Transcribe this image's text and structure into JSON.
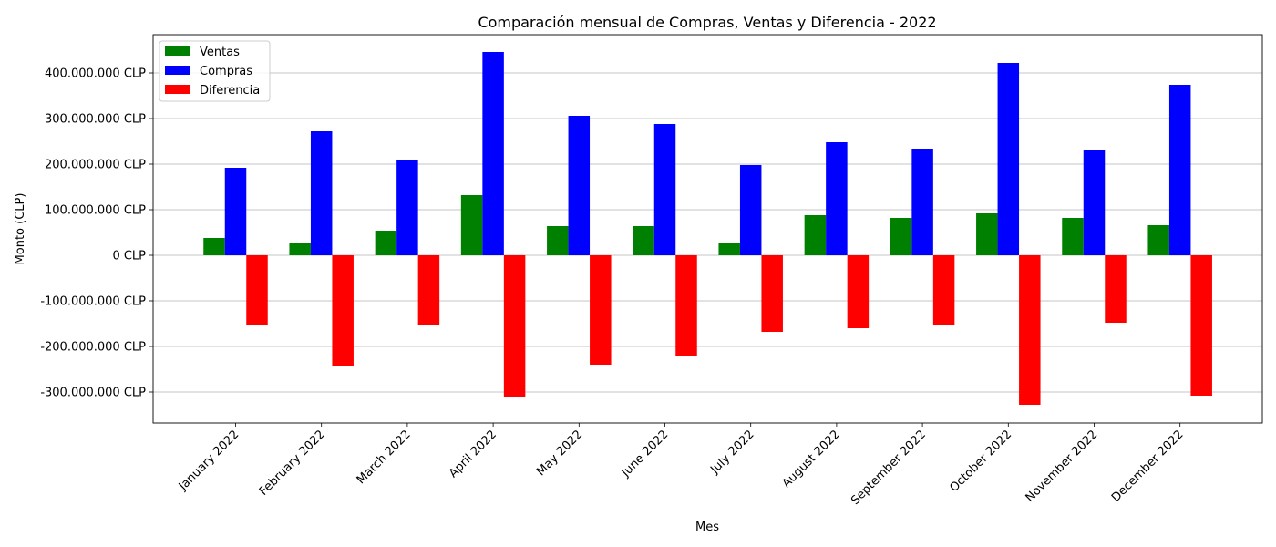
{
  "chart_data": {
    "type": "bar",
    "title": "Comparación mensual de Compras, Ventas y Diferencia - 2022",
    "xlabel": "Mes",
    "ylabel": "Monto (CLP)",
    "ylim": [
      -368000000,
      484000000
    ],
    "yticks": [
      -300000000,
      -200000000,
      -100000000,
      0,
      100000000,
      200000000,
      300000000,
      400000000
    ],
    "ytick_labels": [
      "-300.000.000 CLP",
      "-200.000.000 CLP",
      "-100.000.000 CLP",
      "0 CLP",
      "100.000.000 CLP",
      "200.000.000 CLP",
      "300.000.000 CLP",
      "400.000.000 CLP"
    ],
    "grid": "horizontal",
    "legend_position": "top-left",
    "categories": [
      "January 2022",
      "February 2022",
      "March 2022",
      "April 2022",
      "May 2022",
      "June 2022",
      "July 2022",
      "August 2022",
      "September 2022",
      "October 2022",
      "November 2022",
      "December 2022"
    ],
    "series": [
      {
        "name": "Ventas",
        "color": "#008000",
        "values": [
          38000000,
          26000000,
          54000000,
          132000000,
          64000000,
          64000000,
          28000000,
          88000000,
          82000000,
          92000000,
          82000000,
          66000000
        ]
      },
      {
        "name": "Compras",
        "color": "#0000ff",
        "values": [
          192000000,
          272000000,
          208000000,
          446000000,
          306000000,
          288000000,
          198000000,
          248000000,
          234000000,
          422000000,
          232000000,
          374000000
        ]
      },
      {
        "name": "Diferencia",
        "color": "#ff0000",
        "values": [
          -154000000,
          -244000000,
          -154000000,
          -312000000,
          -240000000,
          -222000000,
          -168000000,
          -160000000,
          -152000000,
          -328000000,
          -148000000,
          -308000000
        ]
      }
    ]
  }
}
